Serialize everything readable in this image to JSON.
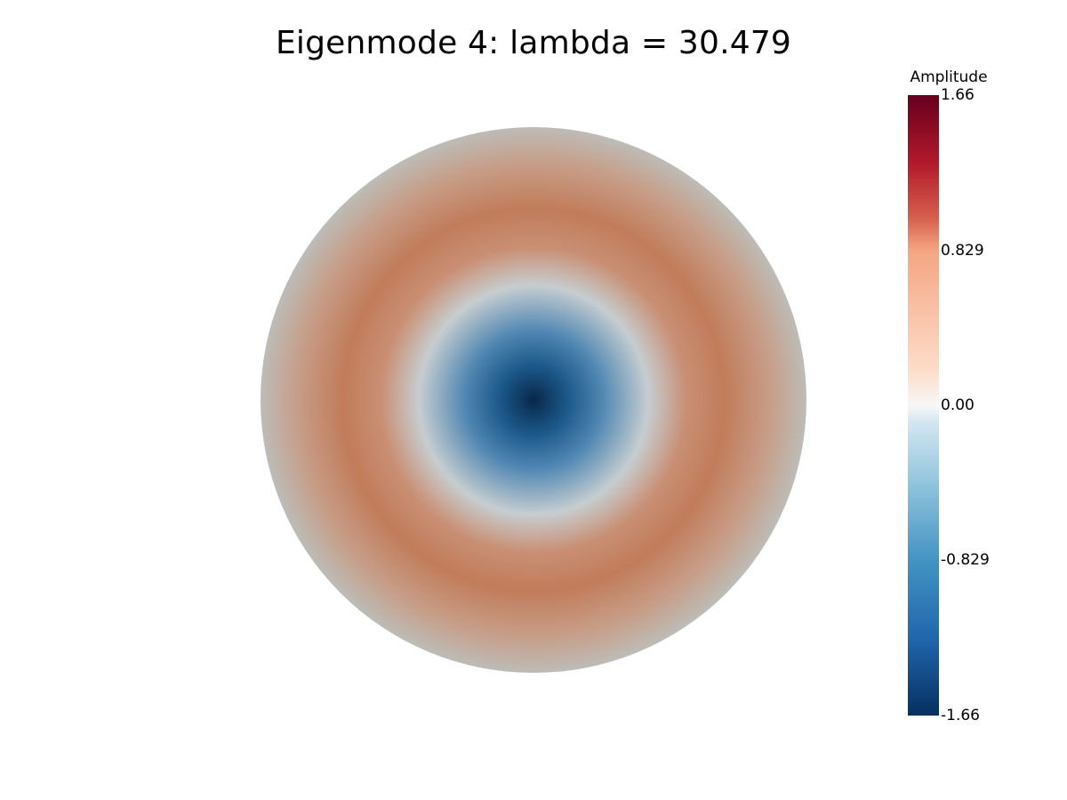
{
  "title": "Eigenmode 4: lambda = 30.479",
  "eigenmode": {
    "index": 4,
    "lambda": 30.479
  },
  "colorbar": {
    "title": "Amplitude",
    "ticks": [
      "1.66",
      "0.829",
      "0.00",
      "-0.829",
      "-1.66"
    ],
    "range": [
      -1.66,
      1.66
    ],
    "colormap": [
      {
        "v": -1.66,
        "color": "#053061"
      },
      {
        "v": -1.245,
        "color": "#2166ac"
      },
      {
        "v": -0.83,
        "color": "#4393c3"
      },
      {
        "v": -0.415,
        "color": "#92c5de"
      },
      {
        "v": -0.1,
        "color": "#d1e5f0"
      },
      {
        "v": 0.0,
        "color": "#f7f7f7"
      },
      {
        "v": 0.2,
        "color": "#fddbc7"
      },
      {
        "v": 0.83,
        "color": "#f4a582"
      },
      {
        "v": 1.0,
        "color": "#d6604d"
      },
      {
        "v": 1.3,
        "color": "#b2182b"
      },
      {
        "v": 1.66,
        "color": "#67001f"
      }
    ]
  },
  "disk_field": {
    "colors": {
      "center": "#07284b",
      "inner": "#1d5a8c",
      "mid_inner": "#4f86b2",
      "node_ring": "#c6cdd0",
      "warm_inner": "#c98f74",
      "ring_peak": "#c17c5a",
      "warm_outer": "#c79c86",
      "edge": "#bdbcb7"
    }
  }
}
